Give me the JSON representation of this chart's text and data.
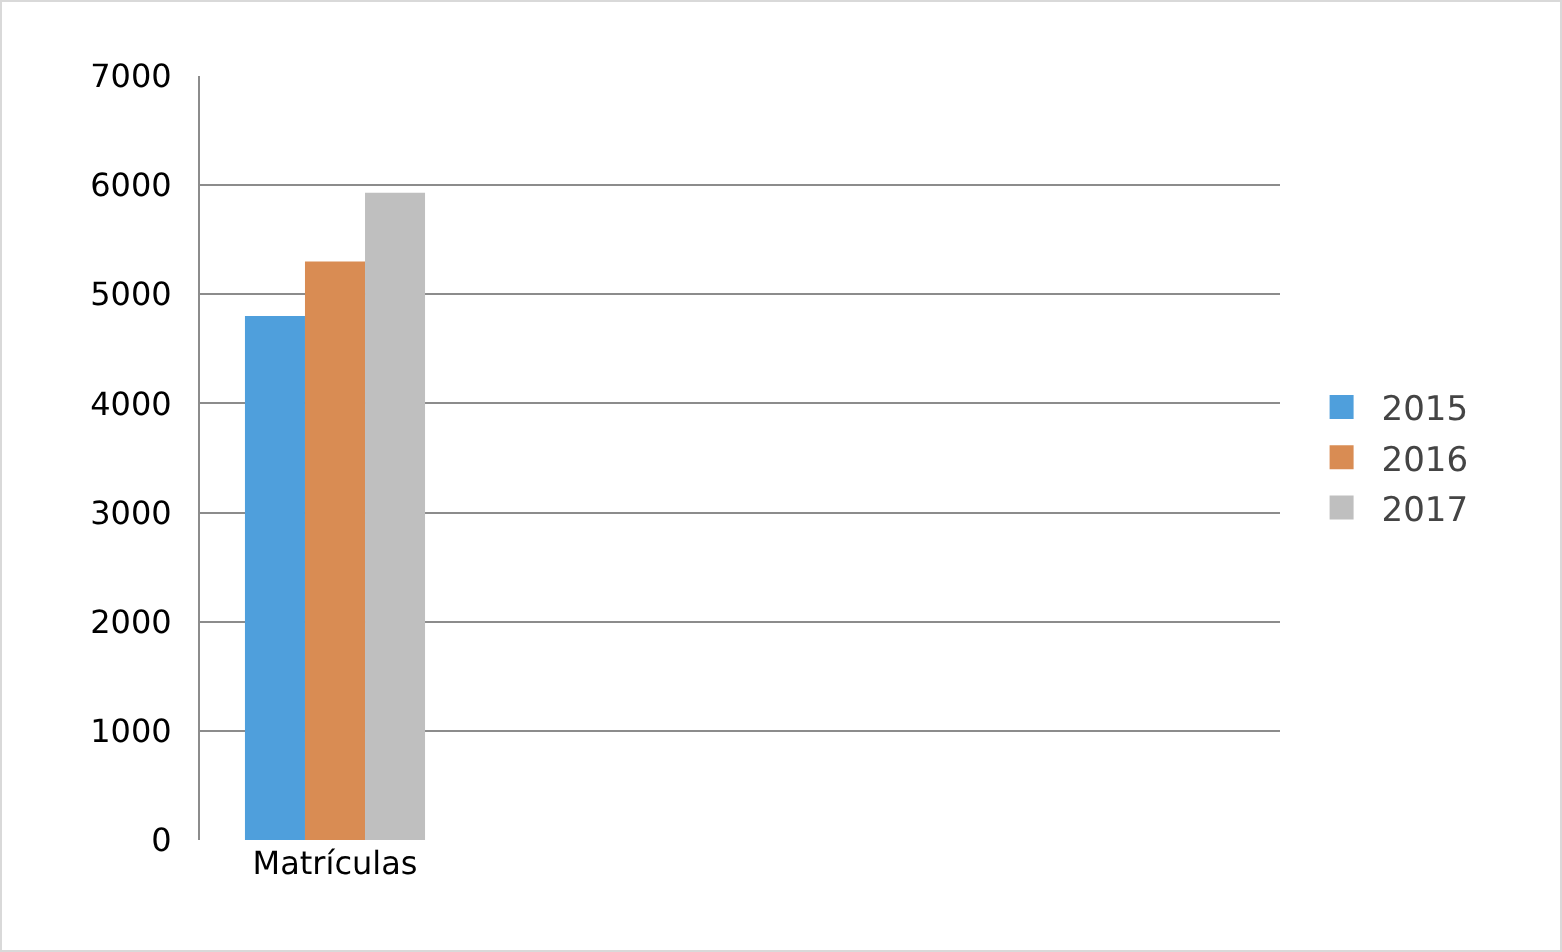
{
  "chart_data": {
    "type": "bar",
    "categories": [
      "Matrículas",
      null,
      null,
      null
    ],
    "series": [
      {
        "name": "2015",
        "color": "#4f9fdc",
        "values": [
          4800,
          null,
          null,
          null
        ]
      },
      {
        "name": "2016",
        "color": "#d98c53",
        "values": [
          5300,
          null,
          null,
          null
        ]
      },
      {
        "name": "2017",
        "color": "#bfbfbf",
        "values": [
          5930,
          null,
          null,
          null
        ]
      }
    ],
    "ylim": [
      0,
      7000
    ],
    "yticks": [
      0,
      1000,
      2000,
      3000,
      4000,
      5000,
      6000,
      7000
    ],
    "grid": "y",
    "legend": "right"
  }
}
